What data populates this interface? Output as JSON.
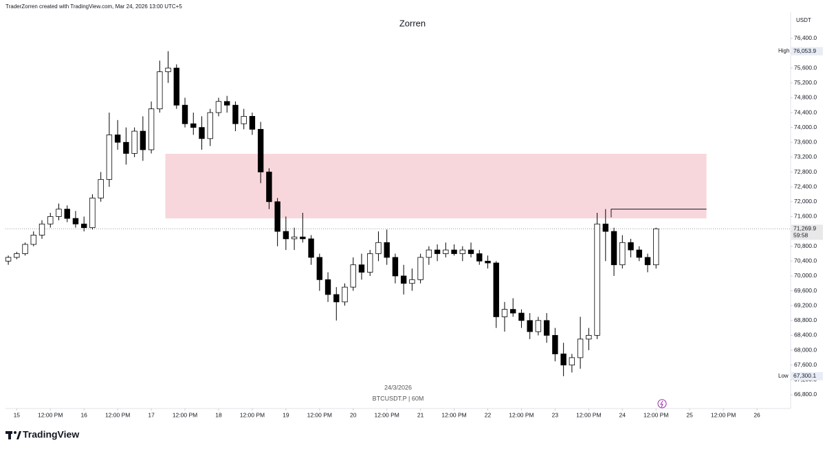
{
  "header": "TraderZorren created with TradingView.com, Mar 24, 2026 13:00 UTC+5",
  "brand": "TradingView",
  "chart_data": {
    "type": "candlestick",
    "title": "Zorren",
    "currency": "USDT",
    "date_label": "24/3/2026",
    "symbol": "BTCUSDT.P | 60M",
    "up_color": "#ffffff",
    "down_color": "#000000",
    "border_color": "#000000",
    "xlim": [
      -4,
      276
    ],
    "xticks": [
      {
        "value": 0,
        "label": "15"
      },
      {
        "value": 12,
        "label": "12:00 PM"
      },
      {
        "value": 24,
        "label": "16"
      },
      {
        "value": 36,
        "label": "12:00 PM"
      },
      {
        "value": 48,
        "label": "17"
      },
      {
        "value": 60,
        "label": "12:00 PM"
      },
      {
        "value": 72,
        "label": "18"
      },
      {
        "value": 84,
        "label": "12:00 PM"
      },
      {
        "value": 96,
        "label": "19"
      },
      {
        "value": 108,
        "label": "12:00 PM"
      },
      {
        "value": 120,
        "label": "20"
      },
      {
        "value": 132,
        "label": "12:00 PM"
      },
      {
        "value": 144,
        "label": "21"
      },
      {
        "value": 156,
        "label": "12:00 PM"
      },
      {
        "value": 168,
        "label": "22"
      },
      {
        "value": 180,
        "label": "12:00 PM"
      },
      {
        "value": 192,
        "label": "23"
      },
      {
        "value": 204,
        "label": "12:00 PM"
      },
      {
        "value": 216,
        "label": "24"
      },
      {
        "value": 228,
        "label": "12:00 PM"
      },
      {
        "value": 240,
        "label": "25"
      },
      {
        "value": 252,
        "label": "12:00 PM"
      },
      {
        "value": 264,
        "label": "26"
      }
    ],
    "ylim": [
      66430,
      77100
    ],
    "yticks": [
      {
        "value": 66800,
        "label": "66,800.0"
      },
      {
        "value": 67200,
        "label": "67,200.0"
      },
      {
        "value": 67600,
        "label": "67,600.0"
      },
      {
        "value": 68000,
        "label": "68,000.0"
      },
      {
        "value": 68400,
        "label": "68,400.0"
      },
      {
        "value": 68800,
        "label": "68,800.0"
      },
      {
        "value": 69200,
        "label": "69,200.0"
      },
      {
        "value": 69600,
        "label": "69,600.0"
      },
      {
        "value": 70000,
        "label": "70,000.0"
      },
      {
        "value": 70400,
        "label": "70,400.0"
      },
      {
        "value": 70800,
        "label": "70,800.0"
      },
      {
        "value": 71200,
        "label": "71,200.0"
      },
      {
        "value": 71600,
        "label": "71,600.0"
      },
      {
        "value": 72000,
        "label": "72,000.0"
      },
      {
        "value": 72400,
        "label": "72,400.0"
      },
      {
        "value": 72800,
        "label": "72,800.0"
      },
      {
        "value": 73200,
        "label": "73,200.0"
      },
      {
        "value": 73600,
        "label": "73,600.0"
      },
      {
        "value": 74000,
        "label": "74,000.0"
      },
      {
        "value": 74400,
        "label": "74,400.0"
      },
      {
        "value": 74800,
        "label": "74,800.0"
      },
      {
        "value": 75200,
        "label": "75,200.0"
      },
      {
        "value": 75600,
        "label": "75,600.0"
      },
      {
        "value": 76000,
        "label": "76,000.0"
      },
      {
        "value": 76400,
        "label": "76,400.0"
      }
    ],
    "markers": [
      {
        "name": "High",
        "value": 76053.9,
        "label": "76,053.9"
      },
      {
        "name": "Low",
        "value": 67300.1,
        "label": "67,300.1"
      }
    ],
    "last_price": {
      "value": 71269.9,
      "label": "71,269.9",
      "countdown": "59:58"
    },
    "zone": {
      "x": [
        53,
        246
      ],
      "y": [
        71550,
        73290
      ],
      "color": "#f8d7dc"
    },
    "level": {
      "x": [
        212,
        246
      ],
      "y": 71800
    },
    "x": [
      -3,
      0,
      3,
      6,
      9,
      12,
      15,
      18,
      21,
      24,
      27,
      30,
      33,
      36,
      39,
      42,
      45,
      48,
      51,
      54,
      57,
      60,
      63,
      66,
      69,
      72,
      75,
      78,
      81,
      84,
      87,
      90,
      93,
      96,
      99,
      102,
      105,
      108,
      111,
      114,
      117,
      120,
      123,
      126,
      129,
      132,
      135,
      138,
      141,
      144,
      147,
      150,
      153,
      156,
      159,
      162,
      165,
      168,
      171,
      174,
      177,
      180,
      183,
      186,
      189,
      192,
      195,
      198,
      201,
      204,
      207,
      210,
      213,
      216,
      219,
      222,
      225,
      228
    ],
    "open": [
      70400,
      70500,
      70600,
      70850,
      71100,
      71400,
      71600,
      71800,
      71550,
      71400,
      71300,
      72100,
      72600,
      73800,
      73600,
      73300,
      73900,
      73400,
      74500,
      75500,
      75600,
      74600,
      74100,
      74000,
      73700,
      74400,
      74700,
      74600,
      74100,
      74300,
      73950,
      72800,
      72000,
      71200,
      71000,
      71050,
      71000,
      70500,
      69900,
      69500,
      69300,
      69700,
      70300,
      70100,
      70600,
      70900,
      70500,
      70000,
      69800,
      69900,
      70500,
      70700,
      70600,
      70700,
      70600,
      70700,
      70600,
      70400,
      70350,
      68900,
      69100,
      69000,
      68800,
      68500,
      68800,
      68400,
      67900,
      67600,
      67800,
      68300,
      68400,
      71400,
      71200,
      70300,
      70900,
      70700,
      70500,
      70300
    ],
    "high": [
      70550,
      70650,
      70900,
      71200,
      71500,
      71700,
      71950,
      71900,
      71750,
      71600,
      72200,
      72800,
      74400,
      74200,
      74000,
      74000,
      74300,
      74700,
      75800,
      76053.9,
      75700,
      74800,
      74400,
      74300,
      74500,
      74800,
      74850,
      74700,
      74500,
      74400,
      74150,
      72900,
      72100,
      71600,
      71300,
      71700,
      71100,
      70600,
      70100,
      69700,
      69800,
      70500,
      70600,
      70700,
      71200,
      71250,
      70600,
      70300,
      70200,
      70600,
      70800,
      70850,
      70900,
      70850,
      70800,
      70900,
      70700,
      70550,
      70400,
      69300,
      69400,
      69100,
      69000,
      68900,
      69000,
      68600,
      68200,
      67900,
      68900,
      68600,
      71700,
      71800,
      71300,
      71100,
      71000,
      70800,
      70600,
      71300
    ],
    "low": [
      70300,
      70450,
      70550,
      70800,
      71000,
      71300,
      71500,
      71450,
      71300,
      71200,
      71250,
      72000,
      72400,
      73400,
      73000,
      73200,
      73100,
      73300,
      74400,
      75200,
      74500,
      74000,
      73800,
      73400,
      73500,
      74300,
      74400,
      73900,
      73950,
      73800,
      72500,
      71800,
      70800,
      70700,
      70700,
      70900,
      70300,
      69600,
      69300,
      68800,
      69200,
      69600,
      69900,
      70000,
      70400,
      70300,
      69800,
      69500,
      69600,
      69800,
      70300,
      70400,
      70500,
      70550,
      70400,
      70500,
      70300,
      70200,
      68600,
      68500,
      68900,
      68600,
      68300,
      68400,
      68200,
      67700,
      67300.1,
      67400,
      67500,
      68000,
      68300,
      70400,
      70000,
      70200,
      70500,
      70400,
      70100,
      70200
    ],
    "close": [
      70500,
      70600,
      70850,
      71100,
      71400,
      71600,
      71800,
      71550,
      71400,
      71300,
      72100,
      72600,
      73800,
      73600,
      73300,
      73900,
      73400,
      74500,
      75500,
      75600,
      74600,
      74100,
      74000,
      73700,
      74400,
      74700,
      74600,
      74100,
      74300,
      73950,
      72800,
      72000,
      71200,
      71000,
      71050,
      71000,
      70500,
      69900,
      69500,
      69300,
      69700,
      70300,
      70100,
      70600,
      70900,
      70500,
      70000,
      69800,
      69900,
      70500,
      70700,
      70600,
      70700,
      70600,
      70700,
      70600,
      70400,
      70350,
      68900,
      69100,
      69000,
      68800,
      68500,
      68800,
      68400,
      67900,
      67600,
      67800,
      68300,
      68400,
      71400,
      71200,
      70300,
      70900,
      70700,
      70500,
      70300,
      71269.9
    ]
  }
}
